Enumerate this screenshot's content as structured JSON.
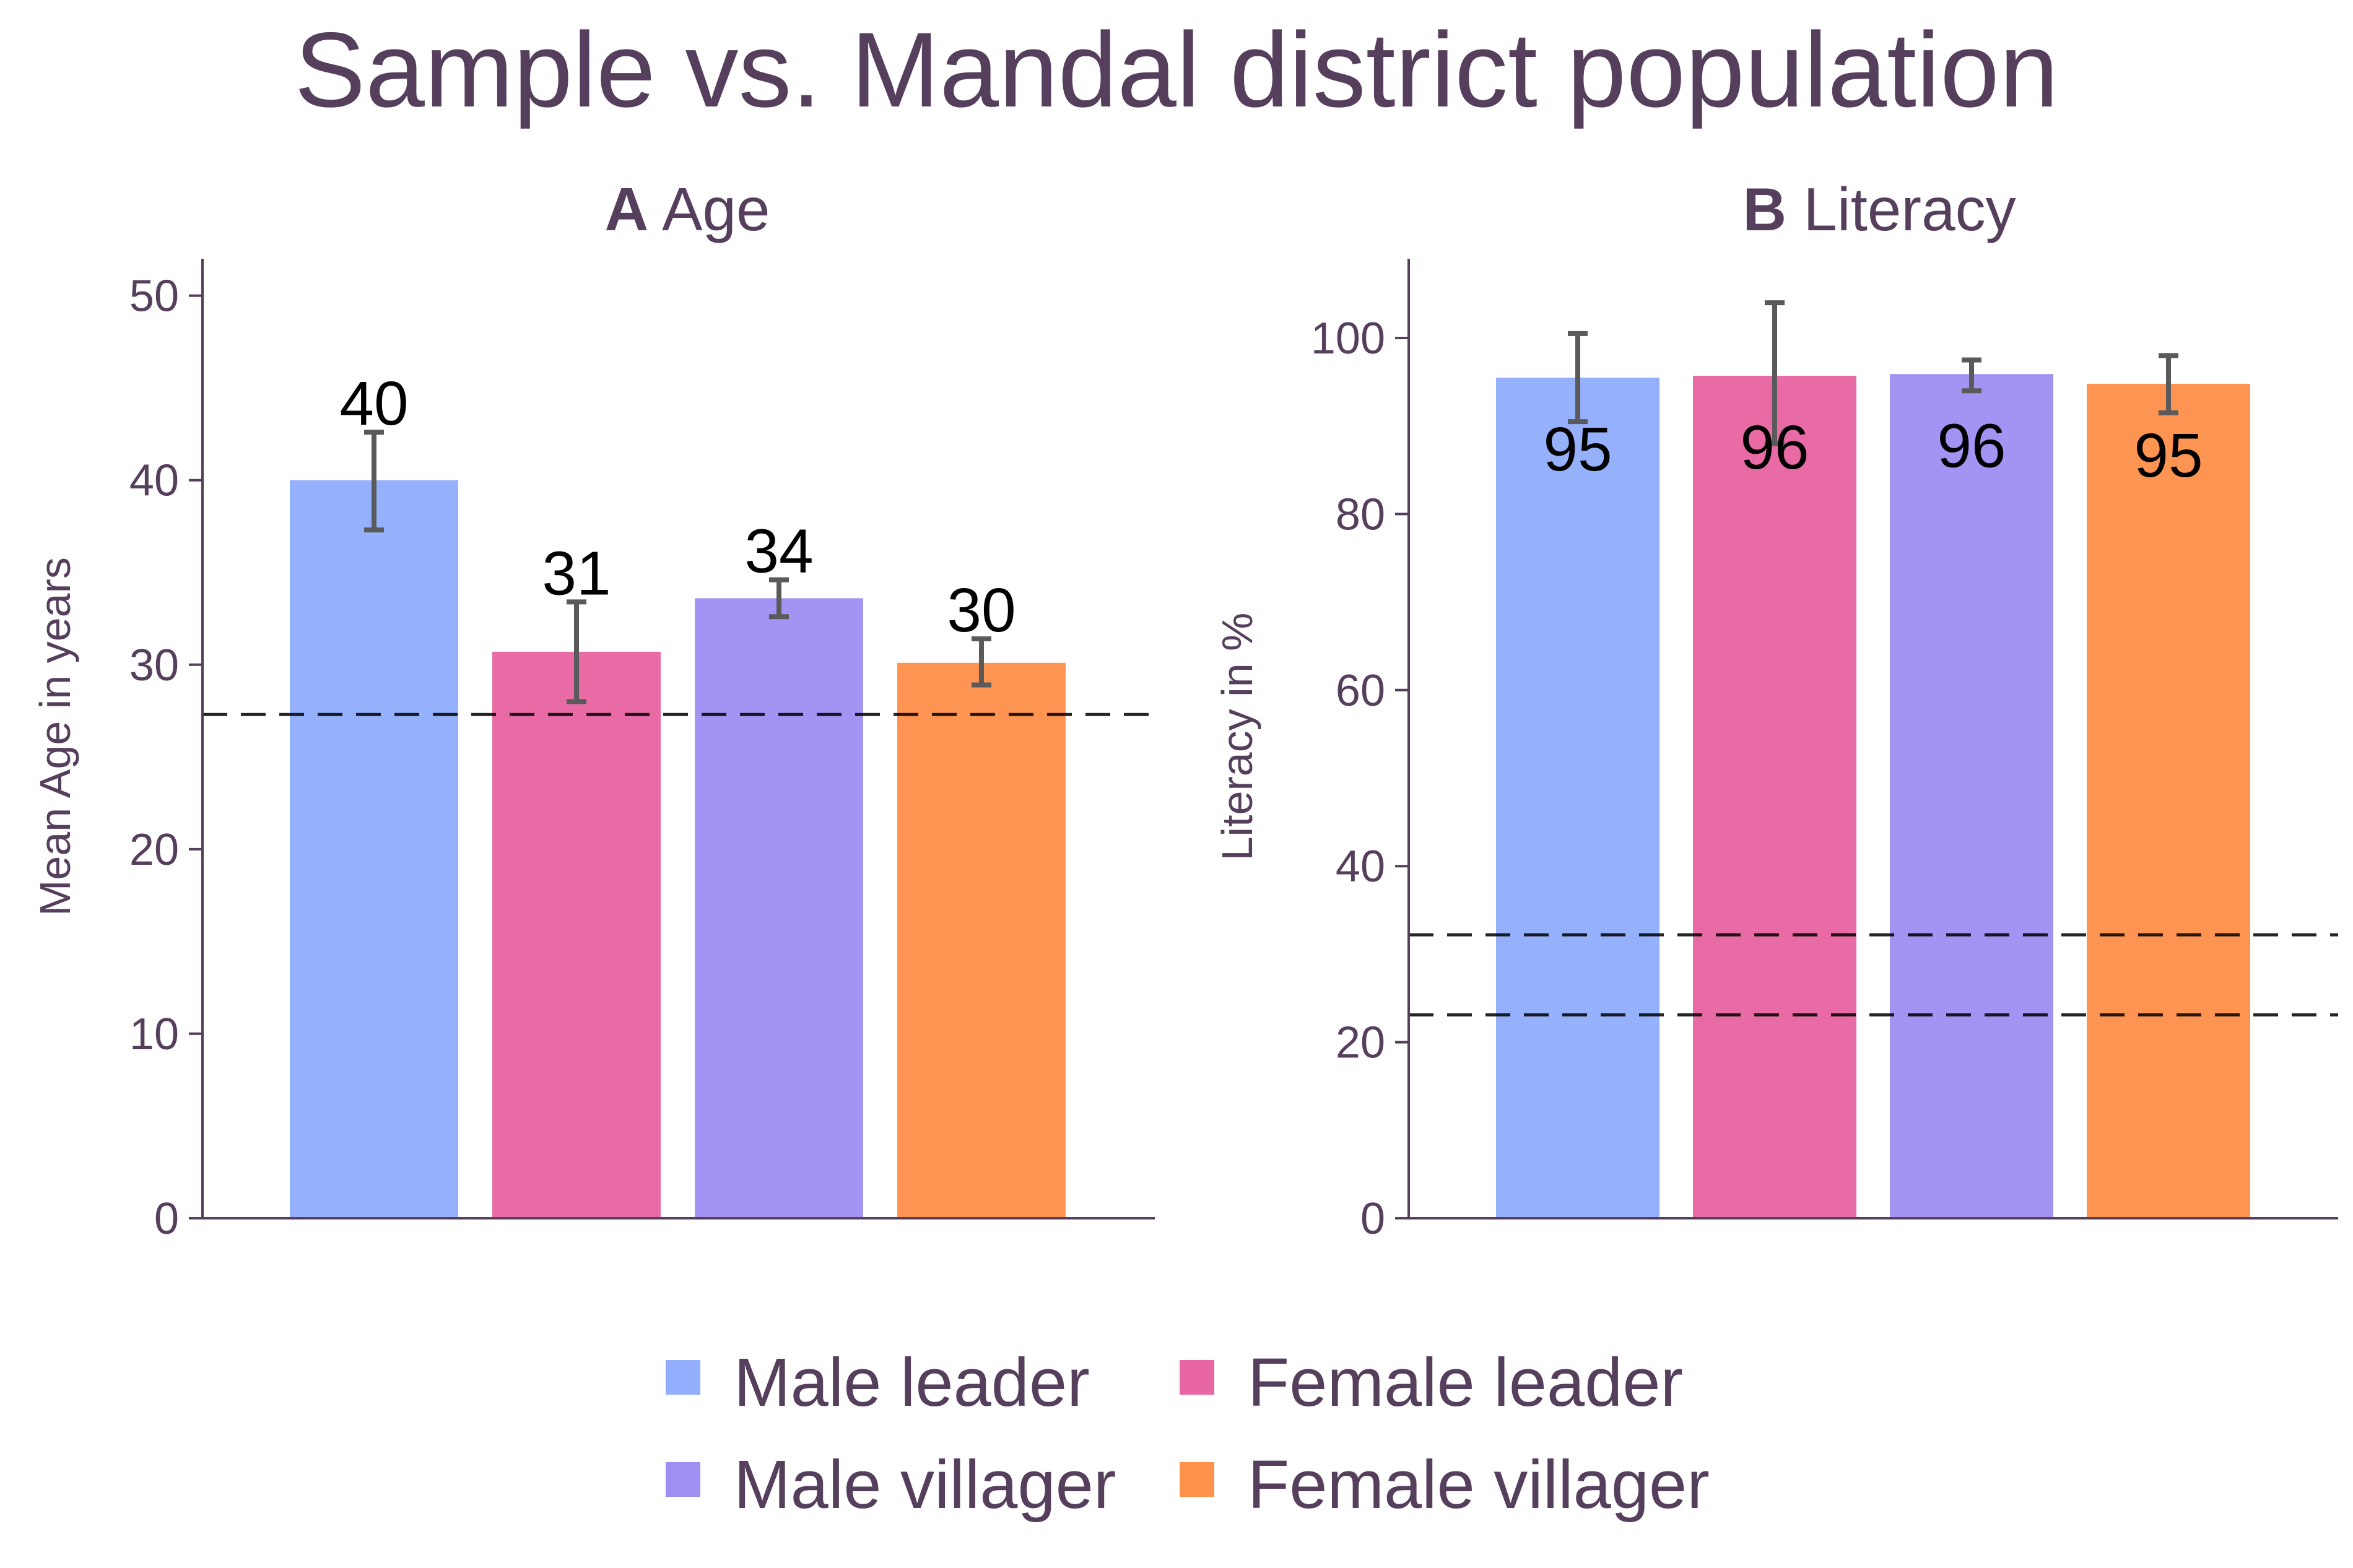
{
  "title": "Sample vs. Mandal district population",
  "legend": [
    {
      "label": "Male leader",
      "color": "#92aefc"
    },
    {
      "label": "Female leader",
      "color": "#e766a3"
    },
    {
      "label": "Male villager",
      "color": "#a08ff2"
    },
    {
      "label": "Female villager",
      "color": "#fe914b"
    }
  ],
  "chart_data": [
    {
      "type": "bar",
      "panel_letter": "A",
      "panel_title": "Age",
      "ylabel": "Mean Age in years",
      "xlabel": "",
      "ylim": [
        0,
        52
      ],
      "yticks": [
        0,
        10,
        20,
        30,
        40,
        50
      ],
      "categories": [
        "Male leader",
        "Female leader",
        "Male villager",
        "Female villager"
      ],
      "values": [
        40,
        30.7,
        33.6,
        30.1
      ],
      "data_labels": [
        "40",
        "31",
        "34",
        "30"
      ],
      "error_bars": [
        [
          37.3,
          42.6
        ],
        [
          28.0,
          33.4
        ],
        [
          32.6,
          34.6
        ],
        [
          28.9,
          31.4
        ]
      ],
      "reference_lines": [
        27.3
      ],
      "label_position": "above",
      "grid": false
    },
    {
      "type": "bar",
      "panel_letter": "B",
      "panel_title": "Literacy",
      "ylabel": "Literacy in %",
      "xlabel": "",
      "ylim": [
        0,
        109
      ],
      "yticks": [
        0,
        20,
        40,
        60,
        80,
        100
      ],
      "categories": [
        "Male leader",
        "Female leader",
        "Male villager",
        "Female villager"
      ],
      "values": [
        95.5,
        95.7,
        95.9,
        94.8
      ],
      "data_labels": [
        "95",
        "96",
        "96",
        "95"
      ],
      "error_bars": [
        [
          90.5,
          100.5
        ],
        [
          88.0,
          104.0
        ],
        [
          94.0,
          97.5
        ],
        [
          91.5,
          98.0
        ]
      ],
      "reference_lines": [
        32.2,
        23.1
      ],
      "label_position": "inside",
      "grid": false
    }
  ]
}
